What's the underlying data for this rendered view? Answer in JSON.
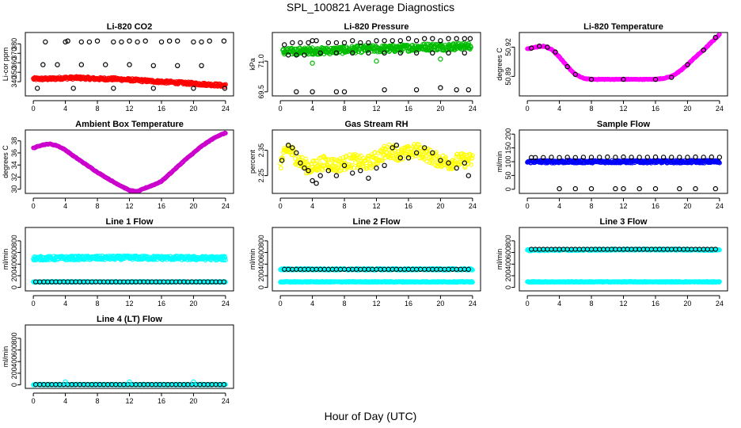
{
  "figure": {
    "title": "SPL_100821  Average Diagnostics",
    "xlabel": "Hour of Day (UTC)"
  },
  "chart_data": [
    {
      "type": "scatter",
      "title": "Li-820 CO2",
      "ylabel": "Li-cor ppm",
      "xlim": [
        -1,
        25
      ],
      "ylim": [
        325,
        392
      ],
      "xticks": [
        0,
        4,
        8,
        12,
        16,
        20,
        24
      ],
      "yticks": [
        340,
        350,
        360,
        370,
        380
      ],
      "ytick_labels": [
        "340",
        "350",
        "360",
        "370",
        "380"
      ],
      "grid": false,
      "series": [
        {
          "kind": "band",
          "color": "#ff0000",
          "x0": 0,
          "x1": 24,
          "y_start": [
            343,
            343,
            344,
            344,
            343,
            343,
            342,
            341,
            340,
            339,
            338,
            337,
            336
          ],
          "thickness": 3
        },
        {
          "kind": "points",
          "color": "#000000",
          "x": [
            1.5,
            4,
            4.3,
            6,
            7,
            8,
            10,
            11,
            12,
            13,
            14,
            16,
            17,
            18,
            20,
            21,
            22,
            23.8,
            1.2,
            3,
            6,
            9,
            12,
            15,
            18,
            21,
            0.5,
            5,
            10,
            15,
            20,
            23.9
          ],
          "y": [
            382,
            382,
            383,
            382,
            382,
            383,
            382,
            382,
            383,
            382,
            383,
            382,
            383,
            383,
            382,
            382,
            383,
            383,
            358,
            358,
            358,
            358,
            358,
            357,
            357,
            357,
            333,
            333,
            333,
            333,
            333,
            333
          ]
        }
      ]
    },
    {
      "type": "scatter",
      "title": "Li-820 Pressure",
      "ylabel": "kPa",
      "xlim": [
        -1,
        25
      ],
      "ylim": [
        69.3,
        72.4
      ],
      "xticks": [
        0,
        4,
        8,
        12,
        16,
        20,
        24
      ],
      "yticks": [
        69.5,
        71.0
      ],
      "ytick_labels": [
        "69.5",
        "71.0"
      ],
      "grid": false,
      "series": [
        {
          "kind": "band",
          "color": "#00bb00",
          "x0": 0.3,
          "x1": 23.8,
          "y_start": [
            71.45,
            71.5,
            71.5,
            71.55,
            71.6,
            71.6,
            71.65,
            71.7,
            71.7,
            71.75
          ],
          "thickness": 0.35
        },
        {
          "kind": "points",
          "color": "#000000",
          "x": [
            0.5,
            1.5,
            2.5,
            3.5,
            4,
            4.5,
            6,
            7,
            8,
            9,
            10,
            11,
            12,
            13,
            14,
            15,
            16,
            17,
            18,
            19,
            20,
            21,
            22,
            23,
            23.7,
            1,
            2,
            3,
            5,
            7,
            9,
            11,
            13,
            15,
            17,
            19,
            21,
            23,
            2,
            4,
            7,
            8,
            13,
            17,
            20,
            22,
            23.5
          ],
          "y": [
            71.8,
            71.9,
            71.9,
            71.9,
            72.0,
            72.0,
            71.9,
            71.9,
            71.9,
            72.0,
            71.9,
            71.9,
            72.0,
            72.0,
            72.0,
            72.0,
            72.1,
            72.0,
            72.1,
            72.1,
            72.0,
            72.1,
            72.1,
            72.1,
            72.1,
            71.3,
            71.3,
            71.3,
            71.4,
            71.4,
            71.4,
            71.4,
            71.4,
            71.4,
            71.4,
            71.4,
            71.4,
            71.4,
            69.5,
            69.5,
            69.5,
            69.5,
            69.6,
            69.6,
            69.7,
            69.6,
            69.6
          ]
        },
        {
          "kind": "points",
          "color": "#00bb00",
          "x": [
            4,
            12,
            20
          ],
          "y": [
            70.9,
            71.0,
            71.1
          ]
        }
      ]
    },
    {
      "type": "scatter",
      "title": "Li-820 Temperature",
      "ylabel": "degrees C",
      "xlim": [
        -1,
        25
      ],
      "ylim": [
        50.87,
        50.935
      ],
      "xticks": [
        0,
        4,
        8,
        12,
        16,
        20,
        24
      ],
      "yticks": [
        50.89,
        50.92
      ],
      "ytick_labels": [
        "50.89",
        "50.92"
      ],
      "grid": false,
      "series": [
        {
          "kind": "curve",
          "color": "#ff00ff",
          "x": [
            0,
            1,
            2,
            3,
            4,
            5,
            6,
            7,
            8,
            10,
            12,
            14,
            16,
            17,
            18,
            19,
            20,
            21,
            22,
            23,
            24
          ],
          "y": [
            50.918,
            50.92,
            50.921,
            50.918,
            50.91,
            50.9,
            50.892,
            50.888,
            50.887,
            50.887,
            50.887,
            50.887,
            50.887,
            50.888,
            50.89,
            50.895,
            50.902,
            50.91,
            50.917,
            50.925,
            50.933
          ]
        },
        {
          "kind": "points",
          "color": "#000000",
          "x": [
            0.5,
            1.5,
            2.5,
            3.5,
            5,
            6,
            8,
            12,
            16,
            18,
            20,
            22,
            23.5
          ],
          "y": [
            50.919,
            50.921,
            50.92,
            50.915,
            50.9,
            50.892,
            50.887,
            50.887,
            50.887,
            50.889,
            50.902,
            50.917,
            50.93
          ]
        }
      ]
    },
    {
      "type": "scatter",
      "title": "Ambient Box Temperature",
      "ylabel": "degrees C",
      "xlim": [
        -1,
        25
      ],
      "ylim": [
        29.3,
        39.8
      ],
      "xticks": [
        0,
        4,
        8,
        12,
        16,
        20,
        24
      ],
      "yticks": [
        30,
        32,
        34,
        36,
        38
      ],
      "ytick_labels": [
        "30",
        "32",
        "34",
        "36",
        "38"
      ],
      "grid": false,
      "series": [
        {
          "kind": "curve",
          "color": "#cc00cc",
          "x": [
            0,
            1,
            2,
            3,
            4,
            5,
            6,
            7,
            8,
            9,
            10,
            11,
            12,
            13,
            14,
            15,
            16,
            17,
            18,
            19,
            20,
            21,
            22,
            23,
            24
          ],
          "y": [
            36.8,
            37.3,
            37.5,
            37.2,
            36.5,
            35.5,
            34.6,
            33.7,
            32.8,
            32.0,
            31.2,
            30.5,
            29.8,
            29.6,
            30.2,
            30.7,
            31.3,
            32.5,
            33.7,
            34.9,
            36.0,
            37.1,
            38.0,
            38.8,
            39.3
          ]
        }
      ]
    },
    {
      "type": "scatter",
      "title": "Gas Stream RH",
      "ylabel": "percent",
      "xlim": [
        -1,
        25
      ],
      "ylim": [
        2.18,
        2.43
      ],
      "xticks": [
        0,
        4,
        8,
        12,
        16,
        20,
        24
      ],
      "yticks": [
        2.25,
        2.35
      ],
      "ytick_labels": [
        "2.25",
        "2.35"
      ],
      "grid": false,
      "series": [
        {
          "kind": "noise",
          "color": "#ffff00",
          "x0": 0,
          "x1": 24,
          "center": [
            2.3,
            2.36,
            2.32,
            2.29,
            2.28,
            2.3,
            2.3,
            2.29,
            2.3,
            2.31,
            2.3,
            2.3,
            2.32,
            2.34,
            2.35,
            2.33,
            2.34,
            2.35,
            2.34,
            2.32,
            2.31,
            2.3,
            2.31,
            2.31,
            2.31
          ],
          "spread": 0.028
        },
        {
          "kind": "points",
          "color": "#000000",
          "x": [
            0.2,
            1,
            1.5,
            2,
            2.5,
            3,
            3.5,
            4,
            4.5,
            5,
            6,
            7,
            8,
            9,
            10,
            11,
            12,
            13,
            14,
            14.5,
            15,
            16,
            17,
            18,
            19,
            20,
            21,
            22,
            23,
            23.5
          ],
          "y": [
            2.31,
            2.37,
            2.36,
            2.34,
            2.3,
            2.28,
            2.27,
            2.23,
            2.22,
            2.25,
            2.27,
            2.25,
            2.29,
            2.26,
            2.27,
            2.24,
            2.28,
            2.29,
            2.36,
            2.37,
            2.32,
            2.32,
            2.34,
            2.36,
            2.34,
            2.31,
            2.3,
            2.28,
            2.3,
            2.25
          ]
        }
      ]
    },
    {
      "type": "scatter",
      "title": "Sample Flow",
      "ylabel": "ml/min",
      "xlim": [
        -1,
        25
      ],
      "ylim": [
        -15,
        215
      ],
      "xticks": [
        0,
        4,
        8,
        12,
        16,
        20,
        24
      ],
      "yticks": [
        0,
        50,
        100,
        150,
        200
      ],
      "ytick_labels": [
        "0",
        "50",
        "100",
        "150",
        "200"
      ],
      "grid": false,
      "series": [
        {
          "kind": "band",
          "color": "#0000ff",
          "x0": 0,
          "x1": 24,
          "y_start": [
            100,
            100,
            100,
            100,
            100
          ],
          "thickness": 10
        },
        {
          "kind": "points",
          "color": "#000000",
          "x": [
            0.5,
            1,
            2,
            3,
            4,
            5,
            6,
            7,
            8,
            9,
            10,
            11,
            12,
            13,
            14,
            15,
            16,
            17,
            18,
            19,
            20,
            21,
            22,
            23,
            24,
            4,
            6,
            8,
            11,
            12,
            14,
            16,
            19,
            21,
            23.5
          ],
          "y": [
            115,
            115,
            115,
            116,
            115,
            116,
            115,
            116,
            116,
            116,
            117,
            116,
            117,
            116,
            116,
            116,
            117,
            116,
            116,
            116,
            116,
            117,
            116,
            117,
            116,
            2,
            2,
            2,
            2,
            2,
            2,
            2,
            2,
            2,
            2
          ]
        }
      ]
    },
    {
      "type": "scatter",
      "title": "Line 1 Flow",
      "ylabel": "ml/min",
      "xlim": [
        -1,
        25
      ],
      "ylim": [
        -60,
        1030
      ],
      "xticks": [
        0,
        4,
        8,
        12,
        16,
        20,
        24
      ],
      "yticks": [
        0,
        200,
        400,
        600,
        800
      ],
      "ytick_labels": [
        "0",
        "200",
        "400",
        "600",
        "800"
      ],
      "grid": false,
      "series": [
        {
          "kind": "band",
          "color": "#00ffff",
          "x0": 0,
          "x1": 24,
          "y_start": [
            500,
            505,
            510,
            505,
            500
          ],
          "thickness": 70
        },
        {
          "kind": "band",
          "color": "#00ffff",
          "x0": 0,
          "x1": 24,
          "y_start": [
            95,
            95,
            95,
            95,
            95
          ],
          "thickness": 15
        },
        {
          "kind": "ring",
          "color": "#000000",
          "x0": 0.3,
          "x1": 23.8,
          "step": 0.5,
          "y": 95
        }
      ]
    },
    {
      "type": "scatter",
      "title": "Line 2 Flow",
      "ylabel": "ml/min",
      "xlim": [
        -1,
        25
      ],
      "ylim": [
        -60,
        1030
      ],
      "xticks": [
        0,
        4,
        8,
        12,
        16,
        20,
        24
      ],
      "yticks": [
        0,
        200,
        400,
        600,
        800
      ],
      "ytick_labels": [
        "0",
        "200",
        "400",
        "600",
        "800"
      ],
      "grid": false,
      "series": [
        {
          "kind": "band",
          "color": "#00ffff",
          "x0": 0,
          "x1": 24,
          "y_start": [
            310,
            310,
            310,
            310,
            310
          ],
          "thickness": 30
        },
        {
          "kind": "band",
          "color": "#00ffff",
          "x0": 0,
          "x1": 24,
          "y_start": [
            95,
            95,
            95,
            95,
            95
          ],
          "thickness": 15
        },
        {
          "kind": "ring",
          "color": "#000000",
          "x0": 0.5,
          "x1": 23.8,
          "step": 0.5,
          "y": 310
        }
      ]
    },
    {
      "type": "scatter",
      "title": "Line 3 Flow",
      "ylabel": "ml/min",
      "xlim": [
        -1,
        25
      ],
      "ylim": [
        -60,
        1030
      ],
      "xticks": [
        0,
        4,
        8,
        12,
        16,
        20,
        24
      ],
      "yticks": [
        0,
        200,
        400,
        600,
        800
      ],
      "ytick_labels": [
        "0",
        "200",
        "400",
        "600",
        "800"
      ],
      "grid": false,
      "series": [
        {
          "kind": "band",
          "color": "#00ffff",
          "x0": 0,
          "x1": 24,
          "y_start": [
            640,
            645,
            650,
            650,
            645
          ],
          "thickness": 25
        },
        {
          "kind": "band",
          "color": "#00ffff",
          "x0": 0,
          "x1": 24,
          "y_start": [
            95,
            95,
            95,
            95,
            95
          ],
          "thickness": 15
        },
        {
          "kind": "ring",
          "color": "#000000",
          "x0": 0.5,
          "x1": 23.8,
          "step": 0.5,
          "y": 655
        }
      ]
    },
    {
      "type": "scatter",
      "title": "Line 4 (LT) Flow",
      "ylabel": "ml/min",
      "xlim": [
        -1,
        25
      ],
      "ylim": [
        -60,
        1030
      ],
      "xticks": [
        0,
        4,
        8,
        12,
        16,
        20,
        24
      ],
      "yticks": [
        0,
        200,
        400,
        600,
        800
      ],
      "ytick_labels": [
        "0",
        "200",
        "400",
        "600",
        "800"
      ],
      "grid": false,
      "series": [
        {
          "kind": "band",
          "color": "#00ffff",
          "x0": 0,
          "x1": 24,
          "y_start": [
            5,
            5,
            5,
            5,
            5
          ],
          "thickness": 15
        },
        {
          "kind": "ring",
          "color": "#000000",
          "x0": 0.3,
          "x1": 23.8,
          "step": 0.5,
          "y": 5
        },
        {
          "kind": "points",
          "color": "#00ffff",
          "x": [
            4,
            12,
            20
          ],
          "y": [
            50,
            50,
            50
          ]
        }
      ]
    }
  ]
}
